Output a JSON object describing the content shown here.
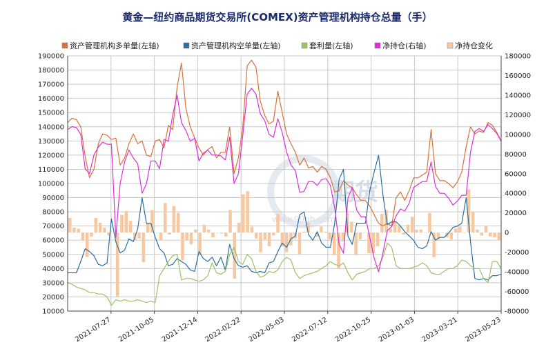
{
  "chart_data": {
    "type": "line",
    "title": "黄金—纽约商品期货交易所(COMEX)资产管理机构持仓总量（手）",
    "watermark": "期货",
    "watermark_url": "www.99qh.com",
    "left_axis": {
      "ylim": [
        10000,
        190000
      ],
      "step": 10000
    },
    "right_axis": {
      "ylim": [
        -80000,
        180000
      ],
      "step": 20000
    },
    "x_ticks": [
      "2021-07-27",
      "2021-10-05",
      "2021-12-14",
      "2022-02-22",
      "2022-05-03",
      "2022-07-12",
      "2022-10-25",
      "2023-01-03",
      "2023-03-21",
      "2023-05-23"
    ],
    "n_points": 100,
    "series": [
      {
        "name": "资产管理机构多单量(左轴)",
        "color": "#d9703a",
        "axis": "left",
        "kind": "line",
        "values": [
          143000,
          146000,
          145000,
          140000,
          119000,
          104000,
          110000,
          128000,
          135000,
          134000,
          131000,
          132000,
          113000,
          118000,
          128000,
          135000,
          128000,
          130000,
          120000,
          119000,
          130000,
          131000,
          125000,
          141000,
          138000,
          168000,
          185000,
          153000,
          140000,
          132000,
          125000,
          120000,
          124000,
          126000,
          118000,
          122000,
          122000,
          140000,
          107000,
          118000,
          140000,
          183000,
          187000,
          182000,
          158000,
          148000,
          142000,
          144000,
          165000,
          150000,
          135000,
          128000,
          122000,
          113000,
          118000,
          111000,
          112000,
          108000,
          112000,
          110000,
          104000,
          94000,
          95000,
          102000,
          99000,
          97000,
          92000,
          88000,
          88000,
          84000,
          78000,
          72000,
          70000,
          72000,
          70000,
          90000,
          94000,
          88000,
          95000,
          104000,
          104000,
          106000,
          108000,
          138000,
          107000,
          102000,
          102000,
          100000,
          97000,
          101000,
          108000,
          126000,
          140000,
          135000,
          137000,
          136000,
          143000,
          141000,
          136000,
          130000
        ]
      },
      {
        "name": "资产管理机构空单量(左轴)",
        "color": "#2c6ea0",
        "axis": "left",
        "kind": "line",
        "values": [
          37000,
          37000,
          37000,
          45000,
          54000,
          52000,
          49000,
          43000,
          42000,
          44000,
          75000,
          59000,
          51000,
          53000,
          61000,
          59000,
          68000,
          90000,
          72000,
          72000,
          62000,
          54000,
          51000,
          42000,
          43000,
          47000,
          45000,
          43000,
          39000,
          38000,
          52000,
          47000,
          45000,
          48000,
          42000,
          48000,
          39000,
          57000,
          47000,
          42000,
          41000,
          42000,
          38000,
          37000,
          38000,
          37000,
          44000,
          45000,
          52000,
          58000,
          55000,
          61000,
          63000,
          78000,
          80000,
          64000,
          60000,
          66000,
          58000,
          55000,
          55000,
          72000,
          103000,
          110000,
          63000,
          57000,
          72000,
          72000,
          72000,
          95000,
          108000,
          120000,
          92000,
          71000,
          73000,
          73000,
          70000,
          66000,
          63000,
          60000,
          55000,
          54000,
          56000,
          66000,
          60000,
          62000,
          62000,
          65000,
          69000,
          70000,
          72000,
          90000,
          59000,
          33000,
          32000,
          33000,
          32000,
          35000,
          35000,
          36000
        ]
      },
      {
        "name": "套利量(左轴)",
        "color": "#9ac265",
        "axis": "left",
        "kind": "line",
        "values": [
          30000,
          29000,
          27000,
          26000,
          25000,
          23000,
          23000,
          22000,
          22000,
          20000,
          14000,
          18000,
          17000,
          18000,
          17000,
          17000,
          18000,
          17000,
          16000,
          17000,
          16000,
          35000,
          40000,
          45000,
          49000,
          50000,
          32000,
          33000,
          33000,
          32000,
          31000,
          32000,
          35000,
          44000,
          37000,
          36000,
          38000,
          50000,
          55000,
          45000,
          43000,
          50000,
          47000,
          38000,
          34000,
          35000,
          38000,
          37000,
          39000,
          45000,
          48000,
          46000,
          37000,
          33000,
          35000,
          36000,
          37000,
          38000,
          40000,
          42000,
          45000,
          43000,
          42000,
          44000,
          37000,
          32000,
          36000,
          37000,
          38000,
          40000,
          40000,
          42000,
          48000,
          58000,
          55000,
          42000,
          40000,
          40000,
          40000,
          41000,
          42000,
          44000,
          42000,
          37000,
          36000,
          36000,
          38000,
          40000,
          40000,
          42000,
          46000,
          45000,
          42000,
          40000,
          40000,
          33000,
          30000,
          45000,
          45000,
          40000
        ]
      },
      {
        "name": "净持仓(右轴)",
        "color": "#dc2fd4",
        "axis": "right",
        "kind": "line",
        "values": [
          105000,
          108000,
          107000,
          100000,
          65000,
          60000,
          79000,
          87000,
          92000,
          90000,
          90000,
          -5000,
          50000,
          72000,
          84000,
          76000,
          70000,
          40000,
          50000,
          73000,
          73000,
          65000,
          95000,
          93000,
          120000,
          140000,
          112000,
          104000,
          93000,
          96000,
          73000,
          81000,
          84000,
          79000,
          79000,
          78000,
          74000,
          97000,
          50000,
          60000,
          99000,
          141000,
          147000,
          141000,
          121000,
          114000,
          100000,
          97000,
          116000,
          102000,
          82000,
          69000,
          63000,
          41000,
          42000,
          52000,
          52000,
          48000,
          54000,
          55000,
          48000,
          25000,
          -12000,
          -21000,
          35000,
          46000,
          23000,
          16000,
          16000,
          -5000,
          -26000,
          -40000,
          -21000,
          2000,
          6000,
          17000,
          24000,
          22000,
          30000,
          46000,
          49000,
          52000,
          52000,
          72000,
          47000,
          40000,
          40000,
          35000,
          28000,
          32000,
          38000,
          38000,
          82000,
          103000,
          106000,
          103000,
          110000,
          106000,
          101000,
          93000
        ]
      },
      {
        "name": "净持仓变化",
        "color": "#f7c7a0",
        "axis": "right",
        "kind": "bar",
        "values": [
          15000,
          5000,
          4000,
          -8000,
          -25000,
          -4000,
          15000,
          10000,
          5000,
          -3000,
          0,
          -65000,
          18000,
          22000,
          12000,
          -8000,
          -6000,
          -30000,
          10000,
          23000,
          0,
          -8000,
          30000,
          -2000,
          27000,
          20000,
          -28000,
          -8000,
          -12000,
          3000,
          -23000,
          8000,
          3000,
          -5000,
          0,
          -1000,
          -4000,
          23000,
          -47000,
          10000,
          39000,
          42000,
          6000,
          -6000,
          -20000,
          -7000,
          -14000,
          -3000,
          19000,
          -14000,
          -20000,
          -13000,
          -6000,
          -22000,
          1000,
          10000,
          0,
          -4000,
          6000,
          1000,
          -7000,
          -23000,
          -37000,
          -9000,
          20000,
          11000,
          -23000,
          -7000,
          0,
          -21000,
          -21000,
          -14000,
          19000,
          23000,
          4000,
          11000,
          7000,
          -2000,
          8000,
          16000,
          3000,
          3000,
          0,
          20000,
          -25000,
          -7000,
          0,
          -5000,
          -7000,
          4000,
          6000,
          0,
          44000,
          21000,
          3000,
          -3000,
          7000,
          -4000,
          -5000,
          -8000
        ]
      }
    ]
  }
}
